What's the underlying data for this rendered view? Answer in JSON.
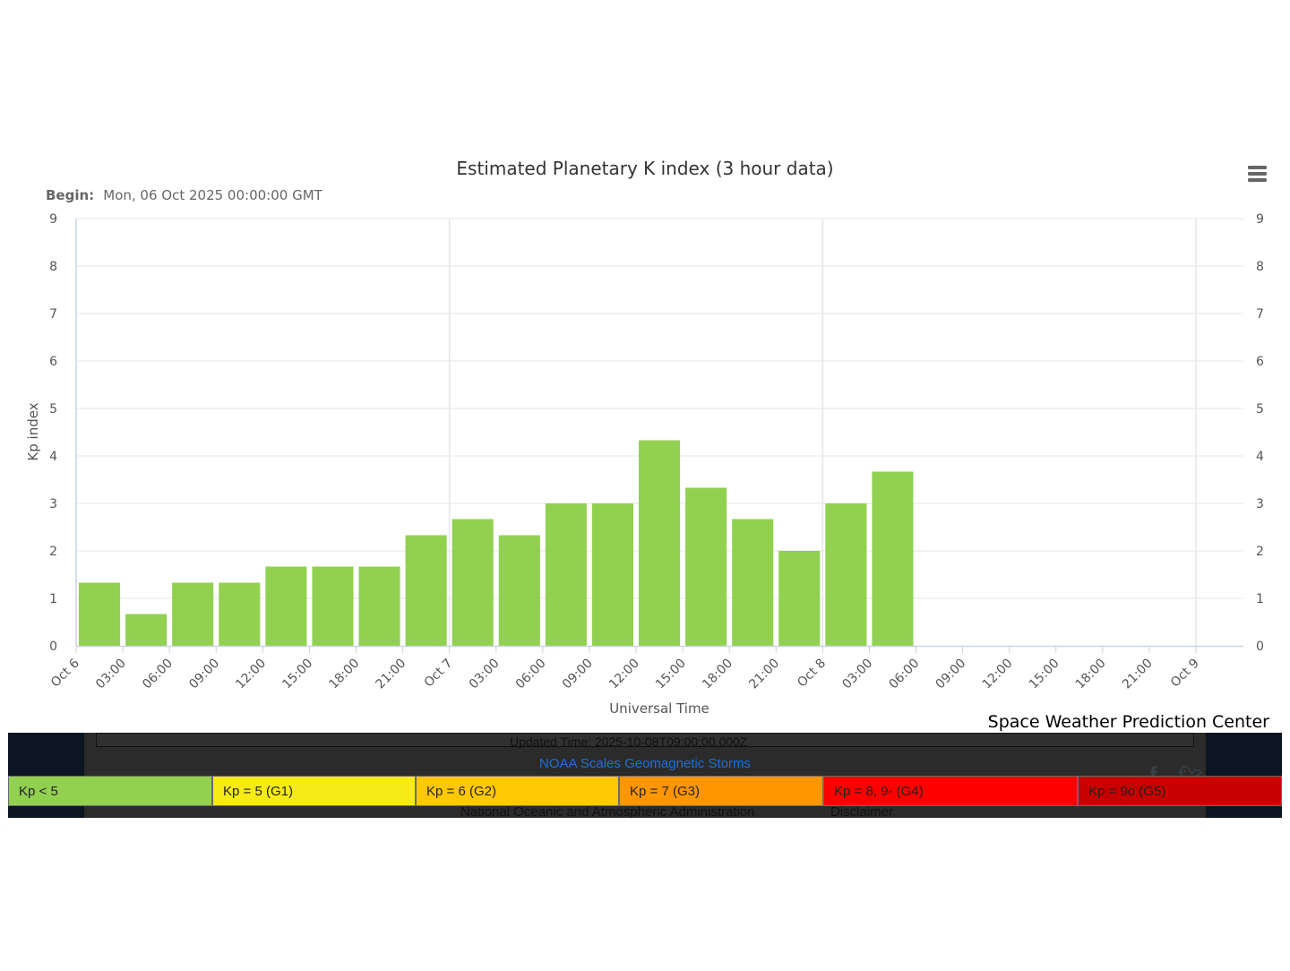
{
  "chart_data": {
    "type": "bar",
    "title": "Estimated Planetary K index (3 hour data)",
    "subtitle": {
      "label": "Begin:",
      "value": "Mon, 06 Oct 2025 00:00:00 GMT"
    },
    "xlabel": "Universal Time",
    "ylabel": "Kp index",
    "ylim": [
      0,
      9
    ],
    "yticks": [
      "0",
      "1",
      "2",
      "3",
      "4",
      "5",
      "6",
      "7",
      "8",
      "9"
    ],
    "y_axis_opposite": true,
    "grid": true,
    "legend": "none",
    "bar_color": "#92d050",
    "x_axis": {
      "unit": "hours since Oct 6 00:00 UT",
      "range": [
        0,
        72
      ],
      "tick_labels": [
        "Oct 6",
        "03:00",
        "06:00",
        "09:00",
        "12:00",
        "15:00",
        "18:00",
        "21:00",
        "Oct 7",
        "03:00",
        "06:00",
        "09:00",
        "12:00",
        "15:00",
        "18:00",
        "21:00",
        "Oct 8",
        "03:00",
        "06:00",
        "09:00",
        "12:00",
        "15:00",
        "18:00",
        "21:00",
        "Oct 9"
      ]
    },
    "categories": [
      "Oct 6 00:00",
      "Oct 6 03:00",
      "Oct 6 06:00",
      "Oct 6 09:00",
      "Oct 6 12:00",
      "Oct 6 15:00",
      "Oct 6 18:00",
      "Oct 6 21:00",
      "Oct 7 00:00",
      "Oct 7 03:00",
      "Oct 7 06:00",
      "Oct 7 09:00",
      "Oct 7 12:00",
      "Oct 7 15:00",
      "Oct 7 18:00",
      "Oct 7 21:00",
      "Oct 8 00:00",
      "Oct 8 03:00"
    ],
    "values": [
      1.33,
      0.67,
      1.33,
      1.33,
      1.67,
      1.67,
      1.67,
      2.33,
      2.67,
      2.33,
      3.0,
      3.0,
      4.33,
      3.33,
      2.67,
      2.0,
      3.0,
      3.67
    ],
    "credits": "Space Weather Prediction Center"
  },
  "menu_icon": "hamburger-menu-icon",
  "footer": {
    "updated_text": "Updated Time: 2025-10-08T09:00:00.000Z",
    "noaa_scales_title": "NOAA Scales Geomagnetic Storms",
    "agency_text": "National Oceanic and Atmospheric Administration",
    "disclaimer_text": "Disclaimer",
    "social_icons": [
      "facebook-icon",
      "twitter-icon"
    ],
    "scales": [
      {
        "label": "Kp < 5",
        "color": "#92d050"
      },
      {
        "label": "Kp = 5 (G1)",
        "color": "#f6eb14"
      },
      {
        "label": "Kp = 6 (G2)",
        "color": "#ffc800"
      },
      {
        "label": "Kp = 7 (G3)",
        "color": "#ff9600"
      },
      {
        "label": "Kp = 8, 9- (G4)",
        "color": "#ff0000"
      },
      {
        "label": "Kp = 9o (G5)",
        "color": "#c80000"
      }
    ]
  }
}
